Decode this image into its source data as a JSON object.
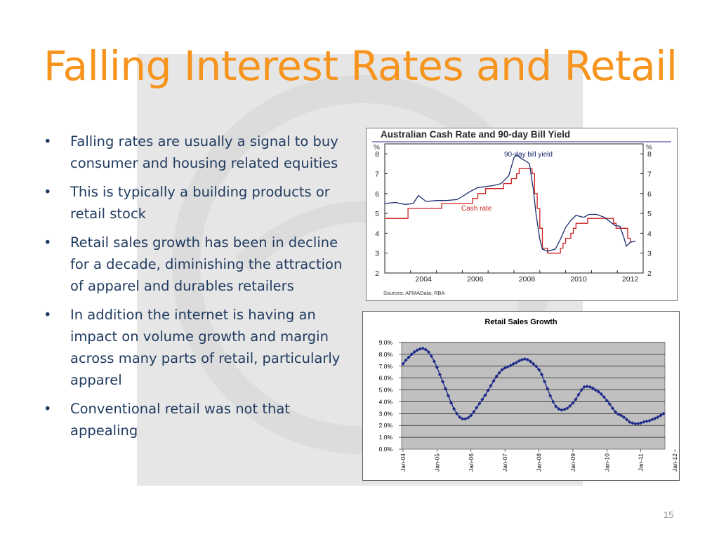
{
  "slide": {
    "title": "Falling Interest Rates and Retail",
    "page_number": "15",
    "bullet_glyph": "•",
    "bullets": [
      "Falling rates are usually a signal to buy consumer and housing related equities",
      "This is typically a building products or retail stock",
      "Retail sales growth has been in decline for a decade, diminishing the attraction of apparel and durables retailers",
      "In addition the internet is having an impact on volume growth and margin across many parts of retail, particularly apparel",
      "Conventional retail was not that appealing"
    ],
    "colors": {
      "title": "#f7941d",
      "text": "#1f3a5f",
      "watermark": "#e6e6e6"
    }
  },
  "chart_data": [
    {
      "type": "line",
      "title": "Australian Cash Rate and 90-day Bill Yield",
      "ylabel_left": "%",
      "ylabel_right": "%",
      "ylim": [
        2,
        8.5
      ],
      "yticks": [
        "8",
        "7",
        "6",
        "5",
        "4",
        "3",
        "2"
      ],
      "xticks": [
        "2004",
        "2006",
        "2008",
        "2010",
        "2012"
      ],
      "source": "Sources: AFMAData; RBA",
      "annotations": [
        "90-day bill yield",
        "Cash rate"
      ],
      "series": [
        {
          "name": "90-day bill yield",
          "color": "#1a2a6c",
          "points": [
            [
              2003.0,
              5.5
            ],
            [
              2003.4,
              5.55
            ],
            [
              2003.8,
              5.45
            ],
            [
              2004.1,
              5.5
            ],
            [
              2004.3,
              5.9
            ],
            [
              2004.6,
              5.6
            ],
            [
              2005.0,
              5.65
            ],
            [
              2005.4,
              5.65
            ],
            [
              2005.8,
              5.7
            ],
            [
              2006.0,
              5.85
            ],
            [
              2006.3,
              6.1
            ],
            [
              2006.6,
              6.3
            ],
            [
              2006.9,
              6.35
            ],
            [
              2007.2,
              6.4
            ],
            [
              2007.5,
              6.5
            ],
            [
              2007.8,
              6.9
            ],
            [
              2007.9,
              7.35
            ],
            [
              2008.0,
              7.8
            ],
            [
              2008.1,
              7.95
            ],
            [
              2008.3,
              7.75
            ],
            [
              2008.5,
              7.6
            ],
            [
              2008.6,
              7.5
            ],
            [
              2008.75,
              6.2
            ],
            [
              2008.85,
              5.0
            ],
            [
              2009.0,
              3.7
            ],
            [
              2009.1,
              3.2
            ],
            [
              2009.3,
              3.1
            ],
            [
              2009.6,
              3.2
            ],
            [
              2009.8,
              3.7
            ],
            [
              2010.0,
              4.3
            ],
            [
              2010.2,
              4.65
            ],
            [
              2010.4,
              4.9
            ],
            [
              2010.7,
              4.8
            ],
            [
              2010.9,
              4.95
            ],
            [
              2011.2,
              4.95
            ],
            [
              2011.5,
              4.8
            ],
            [
              2011.8,
              4.5
            ],
            [
              2011.9,
              4.4
            ],
            [
              2012.1,
              4.35
            ],
            [
              2012.25,
              3.8
            ],
            [
              2012.35,
              3.35
            ],
            [
              2012.5,
              3.55
            ],
            [
              2012.7,
              3.6
            ]
          ]
        },
        {
          "name": "Cash rate",
          "color": "#cc2222",
          "points": [
            [
              2003.0,
              4.75
            ],
            [
              2003.9,
              4.75
            ],
            [
              2003.9,
              5.25
            ],
            [
              2005.2,
              5.25
            ],
            [
              2005.2,
              5.5
            ],
            [
              2006.4,
              5.5
            ],
            [
              2006.4,
              5.75
            ],
            [
              2006.6,
              5.75
            ],
            [
              2006.6,
              6.0
            ],
            [
              2006.9,
              6.0
            ],
            [
              2006.9,
              6.25
            ],
            [
              2007.6,
              6.25
            ],
            [
              2007.6,
              6.5
            ],
            [
              2007.9,
              6.5
            ],
            [
              2007.9,
              6.75
            ],
            [
              2008.1,
              6.75
            ],
            [
              2008.1,
              7.0
            ],
            [
              2008.2,
              7.0
            ],
            [
              2008.2,
              7.25
            ],
            [
              2008.7,
              7.25
            ],
            [
              2008.7,
              7.0
            ],
            [
              2008.8,
              7.0
            ],
            [
              2008.8,
              6.0
            ],
            [
              2008.9,
              6.0
            ],
            [
              2008.9,
              5.25
            ],
            [
              2009.0,
              5.25
            ],
            [
              2009.0,
              4.25
            ],
            [
              2009.1,
              4.25
            ],
            [
              2009.1,
              3.25
            ],
            [
              2009.3,
              3.25
            ],
            [
              2009.3,
              3.0
            ],
            [
              2009.8,
              3.0
            ],
            [
              2009.8,
              3.25
            ],
            [
              2009.9,
              3.25
            ],
            [
              2009.9,
              3.5
            ],
            [
              2010.0,
              3.5
            ],
            [
              2010.0,
              3.75
            ],
            [
              2010.2,
              3.75
            ],
            [
              2010.2,
              4.0
            ],
            [
              2010.3,
              4.0
            ],
            [
              2010.3,
              4.25
            ],
            [
              2010.4,
              4.25
            ],
            [
              2010.4,
              4.5
            ],
            [
              2010.85,
              4.5
            ],
            [
              2010.85,
              4.75
            ],
            [
              2011.85,
              4.75
            ],
            [
              2011.85,
              4.5
            ],
            [
              2011.95,
              4.5
            ],
            [
              2011.95,
              4.25
            ],
            [
              2012.4,
              4.25
            ],
            [
              2012.4,
              3.75
            ],
            [
              2012.5,
              3.75
            ],
            [
              2012.5,
              3.5
            ]
          ]
        }
      ]
    },
    {
      "type": "line",
      "title": "Retail Sales Growth",
      "ylim": [
        0,
        9
      ],
      "yticks": [
        "9.0%",
        "8.0%",
        "7.0%",
        "6.0%",
        "5.0%",
        "4.0%",
        "3.0%",
        "2.0%",
        "1.0%",
        "0.0%"
      ],
      "xticks": [
        "Jan-04",
        "Jan-05",
        "Jan-06",
        "Jan-07",
        "Jan-08",
        "Jan-09",
        "Jan-10",
        "Jan-11",
        "Jan-12"
      ],
      "series": [
        {
          "name": "",
          "color": "#1f2a8a",
          "values": [
            7.2,
            7.5,
            7.75,
            8.0,
            8.2,
            8.35,
            8.45,
            8.5,
            8.4,
            8.2,
            7.85,
            7.4,
            6.9,
            6.3,
            5.7,
            5.1,
            4.5,
            3.9,
            3.4,
            3.0,
            2.7,
            2.55,
            2.55,
            2.65,
            2.85,
            3.15,
            3.5,
            3.85,
            4.2,
            4.55,
            4.95,
            5.35,
            5.75,
            6.15,
            6.45,
            6.7,
            6.85,
            6.95,
            7.05,
            7.2,
            7.3,
            7.45,
            7.55,
            7.6,
            7.55,
            7.4,
            7.2,
            7.0,
            6.7,
            6.3,
            5.7,
            5.1,
            4.5,
            4.0,
            3.6,
            3.4,
            3.3,
            3.35,
            3.45,
            3.65,
            3.9,
            4.2,
            4.6,
            5.0,
            5.25,
            5.3,
            5.25,
            5.15,
            5.0,
            4.85,
            4.65,
            4.4,
            4.1,
            3.8,
            3.45,
            3.15,
            2.95,
            2.85,
            2.7,
            2.5,
            2.3,
            2.2,
            2.15,
            2.15,
            2.2,
            2.3,
            2.35,
            2.4,
            2.5,
            2.6,
            2.7,
            2.85,
            3.0
          ]
        }
      ]
    }
  ]
}
